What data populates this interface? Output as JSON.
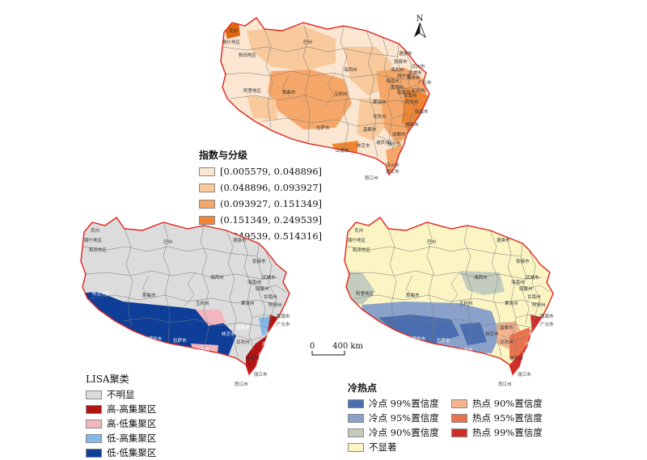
{
  "north_arrow": {
    "label": "N"
  },
  "index_legend": {
    "title": "指数与分级",
    "classes": [
      {
        "label": "[0.005579, 0.048896]",
        "color": "#fbe6d1"
      },
      {
        "label": "(0.048896, 0.093927]",
        "color": "#f8c99b"
      },
      {
        "label": "(0.093927, 0.151349]",
        "color": "#f4a769"
      },
      {
        "label": "(0.151349, 0.249539]",
        "color": "#ee8636"
      },
      {
        "label": "(0.249539, 0.514316]",
        "color": "#e4650f"
      }
    ]
  },
  "lisa_legend": {
    "title": "LISA聚类",
    "classes": [
      {
        "label": "不明显",
        "color": "#dcdcdc"
      },
      {
        "label": "高-高集聚区",
        "color": "#b01515"
      },
      {
        "label": "高-低集聚区",
        "color": "#f2b6bf"
      },
      {
        "label": "低-高集聚区",
        "color": "#84b9ea"
      },
      {
        "label": "低-低集聚区",
        "color": "#0e3e98"
      }
    ]
  },
  "hotspot_legend": {
    "title": "冷热点",
    "classes": [
      {
        "label": "冷点 99%置信度",
        "color": "#4a6eaf"
      },
      {
        "label": "热点 90%置信度",
        "color": "#f2b48f"
      },
      {
        "label": "冷点 95%置信度",
        "color": "#8aa1c9"
      },
      {
        "label": "热点 95%置信度",
        "color": "#e7744f"
      },
      {
        "label": "冷点 90%置信度",
        "color": "#c4cdbd"
      },
      {
        "label": "热点 99%置信度",
        "color": "#cf2f2a"
      },
      {
        "label": "不显著",
        "color": "#fbf5c4"
      }
    ]
  },
  "scale_bar": {
    "zero": "0",
    "distance": "400 km"
  },
  "map_labels": {
    "top": [
      "巴州",
      "海西州",
      "海北州",
      "酒泉市",
      "武威市",
      "临夏州",
      "那曲市",
      "玉树州",
      "甘孜州",
      "阿坝州",
      "陇南市",
      "广元市",
      "绵阳市",
      "成都市",
      "雅安市",
      "凉山州",
      "日喀则市",
      "拉萨市",
      "林芝市",
      "昌都市",
      "迪庆州",
      "丽江市",
      "怒江州",
      "阿里地区",
      "和田地区",
      "海南州",
      "果洛州",
      "甘南州",
      "西宁市",
      "张掖市",
      "克州",
      "喀什地区",
      "黄南州",
      "海东市",
      "兰州市",
      "定西市",
      "山南市"
    ],
    "lisa": [
      "巴州",
      "酒泉市",
      "和田地区",
      "海西州",
      "武威市",
      "那曲市",
      "玉树州",
      "阿里地区",
      "日喀则市",
      "拉萨市",
      "甘孜州",
      "阿坝州",
      "陇南市",
      "广元市",
      "绵阳市",
      "成都市",
      "雅安市",
      "凉山州",
      "怒江州",
      "迪庆州",
      "丽江市",
      "林芝市",
      "昌都市",
      "海南州",
      "果洛州",
      "甘南州",
      "临夏州",
      "张掖市",
      "喀什地区",
      "克州",
      "山南市"
    ],
    "hot": [
      "巴州",
      "酒泉市",
      "和田地区",
      "海西州",
      "武威市",
      "那曲市",
      "玉树州",
      "阿里地区",
      "日喀则市",
      "拉萨市",
      "甘孜州",
      "阿坝州",
      "陇南市",
      "广元市",
      "绵阳市",
      "成都市",
      "雅安市",
      "凉山州",
      "怒江州",
      "迪庆州",
      "丽江市",
      "林芝市",
      "昌都市",
      "海南州",
      "果洛州",
      "甘南州",
      "临夏州",
      "张掖市",
      "喀什地区",
      "克州",
      "山南市"
    ]
  }
}
